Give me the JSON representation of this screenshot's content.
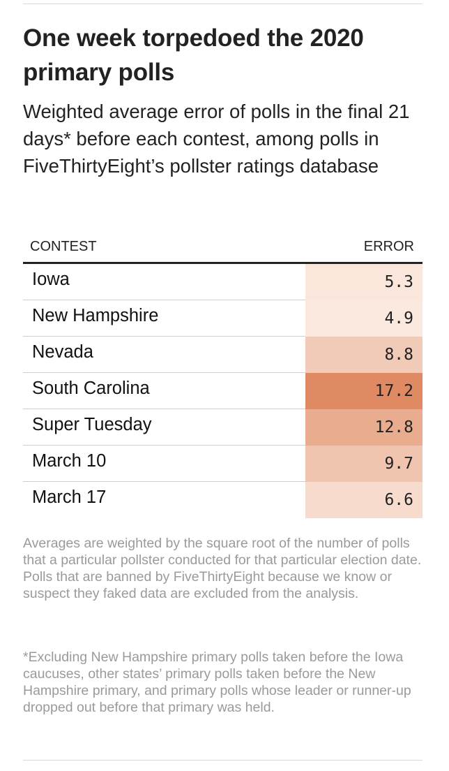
{
  "title": "One week torpedoed the 2020 primary polls",
  "subtitle": "Weighted average error of polls in the final 21 days* before each contest, among polls in FiveThirtyEight’s pollster ratings database",
  "chart_data": {
    "type": "table",
    "title": "One week torpedoed the 2020 primary polls",
    "subtitle": "Weighted average error of polls in the final 21 days* before each contest, among polls in FiveThirtyEight’s pollster ratings database",
    "columns": [
      "CONTEST",
      "ERROR"
    ],
    "categories": [
      "Iowa",
      "New Hampshire",
      "Nevada",
      "South Carolina",
      "Super Tuesday",
      "March 10",
      "March 17"
    ],
    "values": [
      5.3,
      4.9,
      8.8,
      17.2,
      12.8,
      9.7,
      6.6
    ],
    "value_labels": [
      "5.3",
      "4.9",
      "8.8",
      "17.2",
      "12.8",
      "9.7",
      "6.6"
    ],
    "color_scale": {
      "low": "#fbe9df",
      "high": "#e08a63"
    }
  },
  "notes": {
    "weighting": "Averages are weighted by the square root of the number of polls that a particular pollster conducted for that particular election date. Polls that are banned by FiveThirtyEight because we know or suspect they faked data are excluded from the analysis.",
    "footnote": "*Excluding New Hampshire primary polls taken before the Iowa caucuses, other states’ primary polls taken before the New Hampshire primary, and primary polls whose leader or runner-up dropped out before that primary was held."
  }
}
